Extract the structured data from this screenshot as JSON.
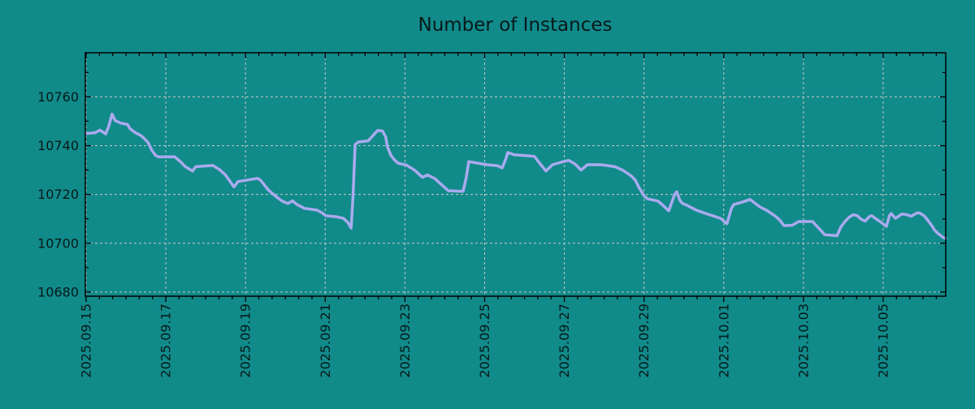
{
  "chart_data": {
    "type": "line",
    "title": "Number of Instances",
    "xlabel": "",
    "ylabel": "",
    "legend": "none",
    "grid": "dashed",
    "x_unit": "days since first x tick (2025-09-15)",
    "x_tick_labels": [
      "2025.09.15",
      "2025.09.17",
      "2025.09.19",
      "2025.09.21",
      "2025.09.23",
      "2025.09.25",
      "2025.09.27",
      "2025.09.29",
      "2025.10.01",
      "2025.10.03",
      "2025.10.05"
    ],
    "x_tick_days": [
      0,
      2,
      4,
      6,
      8,
      10,
      12,
      14,
      16,
      18,
      20
    ],
    "x_minor_tick_interval_days": 0.33333,
    "y_ticks": [
      10680,
      10700,
      10720,
      10740,
      10760
    ],
    "y_tick_labels": [
      "10680",
      "10700",
      "10720",
      "10740",
      "10760"
    ],
    "y_minor_ticks": [
      10690,
      10710,
      10730,
      10750,
      10770
    ],
    "xlim_days": [
      -0.02,
      21.57
    ],
    "ylim": [
      10678.3,
      10778.1
    ],
    "colors": {
      "background": "#118a8a",
      "line": "#aaaaee",
      "grid": "#c8c8c8",
      "axis": "#000000",
      "text": "#071919"
    },
    "series": [
      {
        "name": "Number of Instances",
        "points": [
          [
            0.0,
            10745
          ],
          [
            0.22,
            10745.3
          ],
          [
            0.35,
            10746.4
          ],
          [
            0.49,
            10744.8
          ],
          [
            0.57,
            10748
          ],
          [
            0.65,
            10753
          ],
          [
            0.73,
            10750.3
          ],
          [
            0.86,
            10749.3
          ],
          [
            1.04,
            10748.7
          ],
          [
            1.1,
            10747
          ],
          [
            1.24,
            10745.3
          ],
          [
            1.37,
            10744.2
          ],
          [
            1.45,
            10743.1
          ],
          [
            1.55,
            10741.4
          ],
          [
            1.65,
            10738.1
          ],
          [
            1.75,
            10735.9
          ],
          [
            1.83,
            10735.4
          ],
          [
            2.22,
            10735.5
          ],
          [
            2.39,
            10733.1
          ],
          [
            2.49,
            10731.4
          ],
          [
            2.67,
            10729.6
          ],
          [
            2.75,
            10731.4
          ],
          [
            3.18,
            10731.9
          ],
          [
            3.34,
            10730.3
          ],
          [
            3.49,
            10728.1
          ],
          [
            3.71,
            10723.1
          ],
          [
            3.81,
            10725.3
          ],
          [
            4.0,
            10725.8
          ],
          [
            4.3,
            10726.6
          ],
          [
            4.38,
            10725.8
          ],
          [
            4.57,
            10721.9
          ],
          [
            4.77,
            10719.1
          ],
          [
            4.91,
            10717.4
          ],
          [
            5.06,
            10716.3
          ],
          [
            5.18,
            10717.4
          ],
          [
            5.28,
            10716
          ],
          [
            5.48,
            10714.3
          ],
          [
            5.79,
            10713.6
          ],
          [
            5.93,
            10712.4
          ],
          [
            6.01,
            10711.3
          ],
          [
            6.3,
            10710.8
          ],
          [
            6.46,
            10710.2
          ],
          [
            6.57,
            10708.5
          ],
          [
            6.65,
            10706.2
          ],
          [
            6.7,
            10720
          ],
          [
            6.75,
            10740.5
          ],
          [
            6.83,
            10741.5
          ],
          [
            7.08,
            10742
          ],
          [
            7.26,
            10745.3
          ],
          [
            7.32,
            10746.3
          ],
          [
            7.44,
            10746
          ],
          [
            7.52,
            10743.5
          ],
          [
            7.56,
            10739.5
          ],
          [
            7.65,
            10736
          ],
          [
            7.75,
            10734
          ],
          [
            7.83,
            10732.8
          ],
          [
            8.03,
            10732.1
          ],
          [
            8.24,
            10730
          ],
          [
            8.44,
            10727
          ],
          [
            8.56,
            10728
          ],
          [
            8.75,
            10726.5
          ],
          [
            8.95,
            10723.5
          ],
          [
            9.09,
            10721.5
          ],
          [
            9.46,
            10721.3
          ],
          [
            9.54,
            10727
          ],
          [
            9.6,
            10733.5
          ],
          [
            9.77,
            10733
          ],
          [
            10.07,
            10732.2
          ],
          [
            10.32,
            10731.8
          ],
          [
            10.44,
            10730.9
          ],
          [
            10.54,
            10735
          ],
          [
            10.58,
            10737.2
          ],
          [
            10.74,
            10736.3
          ],
          [
            11.15,
            10735.8
          ],
          [
            11.25,
            10735.6
          ],
          [
            11.4,
            10732.4
          ],
          [
            11.54,
            10729.6
          ],
          [
            11.7,
            10732.2
          ],
          [
            11.91,
            10733.2
          ],
          [
            12.11,
            10734
          ],
          [
            12.27,
            10732.5
          ],
          [
            12.42,
            10730
          ],
          [
            12.58,
            10732.2
          ],
          [
            12.93,
            10732.2
          ],
          [
            13.27,
            10731.4
          ],
          [
            13.48,
            10729.8
          ],
          [
            13.68,
            10727.6
          ],
          [
            13.78,
            10725.9
          ],
          [
            13.88,
            10722.6
          ],
          [
            14.01,
            10719.3
          ],
          [
            14.09,
            10718.2
          ],
          [
            14.35,
            10717.3
          ],
          [
            14.45,
            10715.9
          ],
          [
            14.62,
            10713.3
          ],
          [
            14.76,
            10719.8
          ],
          [
            14.82,
            10721.1
          ],
          [
            14.9,
            10717.6
          ],
          [
            14.96,
            10716.4
          ],
          [
            15.11,
            10715.3
          ],
          [
            15.31,
            10713.6
          ],
          [
            15.51,
            10712.4
          ],
          [
            15.72,
            10711.3
          ],
          [
            15.92,
            10710.2
          ],
          [
            16.08,
            10708
          ],
          [
            16.19,
            10714.2
          ],
          [
            16.25,
            10715.9
          ],
          [
            16.49,
            10717
          ],
          [
            16.66,
            10718
          ],
          [
            16.9,
            10715
          ],
          [
            17.1,
            10713.3
          ],
          [
            17.31,
            10710.9
          ],
          [
            17.41,
            10709.4
          ],
          [
            17.51,
            10707.2
          ],
          [
            17.72,
            10707.4
          ],
          [
            17.88,
            10708.9
          ],
          [
            18.23,
            10708.9
          ],
          [
            18.29,
            10707.8
          ],
          [
            18.39,
            10706.1
          ],
          [
            18.53,
            10703.5
          ],
          [
            18.84,
            10703.1
          ],
          [
            18.94,
            10706.7
          ],
          [
            19.04,
            10708.9
          ],
          [
            19.14,
            10710.6
          ],
          [
            19.25,
            10711.7
          ],
          [
            19.35,
            10711.3
          ],
          [
            19.45,
            10709.8
          ],
          [
            19.55,
            10709.1
          ],
          [
            19.65,
            10710.9
          ],
          [
            19.71,
            10711.3
          ],
          [
            19.82,
            10710
          ],
          [
            19.92,
            10708.9
          ],
          [
            20.08,
            10706.9
          ],
          [
            20.16,
            10711.4
          ],
          [
            20.2,
            10712.2
          ],
          [
            20.31,
            10710.2
          ],
          [
            20.47,
            10712
          ],
          [
            20.57,
            10711.8
          ],
          [
            20.71,
            10711.1
          ],
          [
            20.84,
            10712.4
          ],
          [
            20.92,
            10712.4
          ],
          [
            21.04,
            10711.1
          ],
          [
            21.12,
            10709.4
          ],
          [
            21.22,
            10707.2
          ],
          [
            21.28,
            10705.6
          ],
          [
            21.35,
            10704.4
          ],
          [
            21.43,
            10703.3
          ],
          [
            21.51,
            10702.3
          ],
          [
            21.57,
            10702
          ]
        ]
      }
    ]
  }
}
